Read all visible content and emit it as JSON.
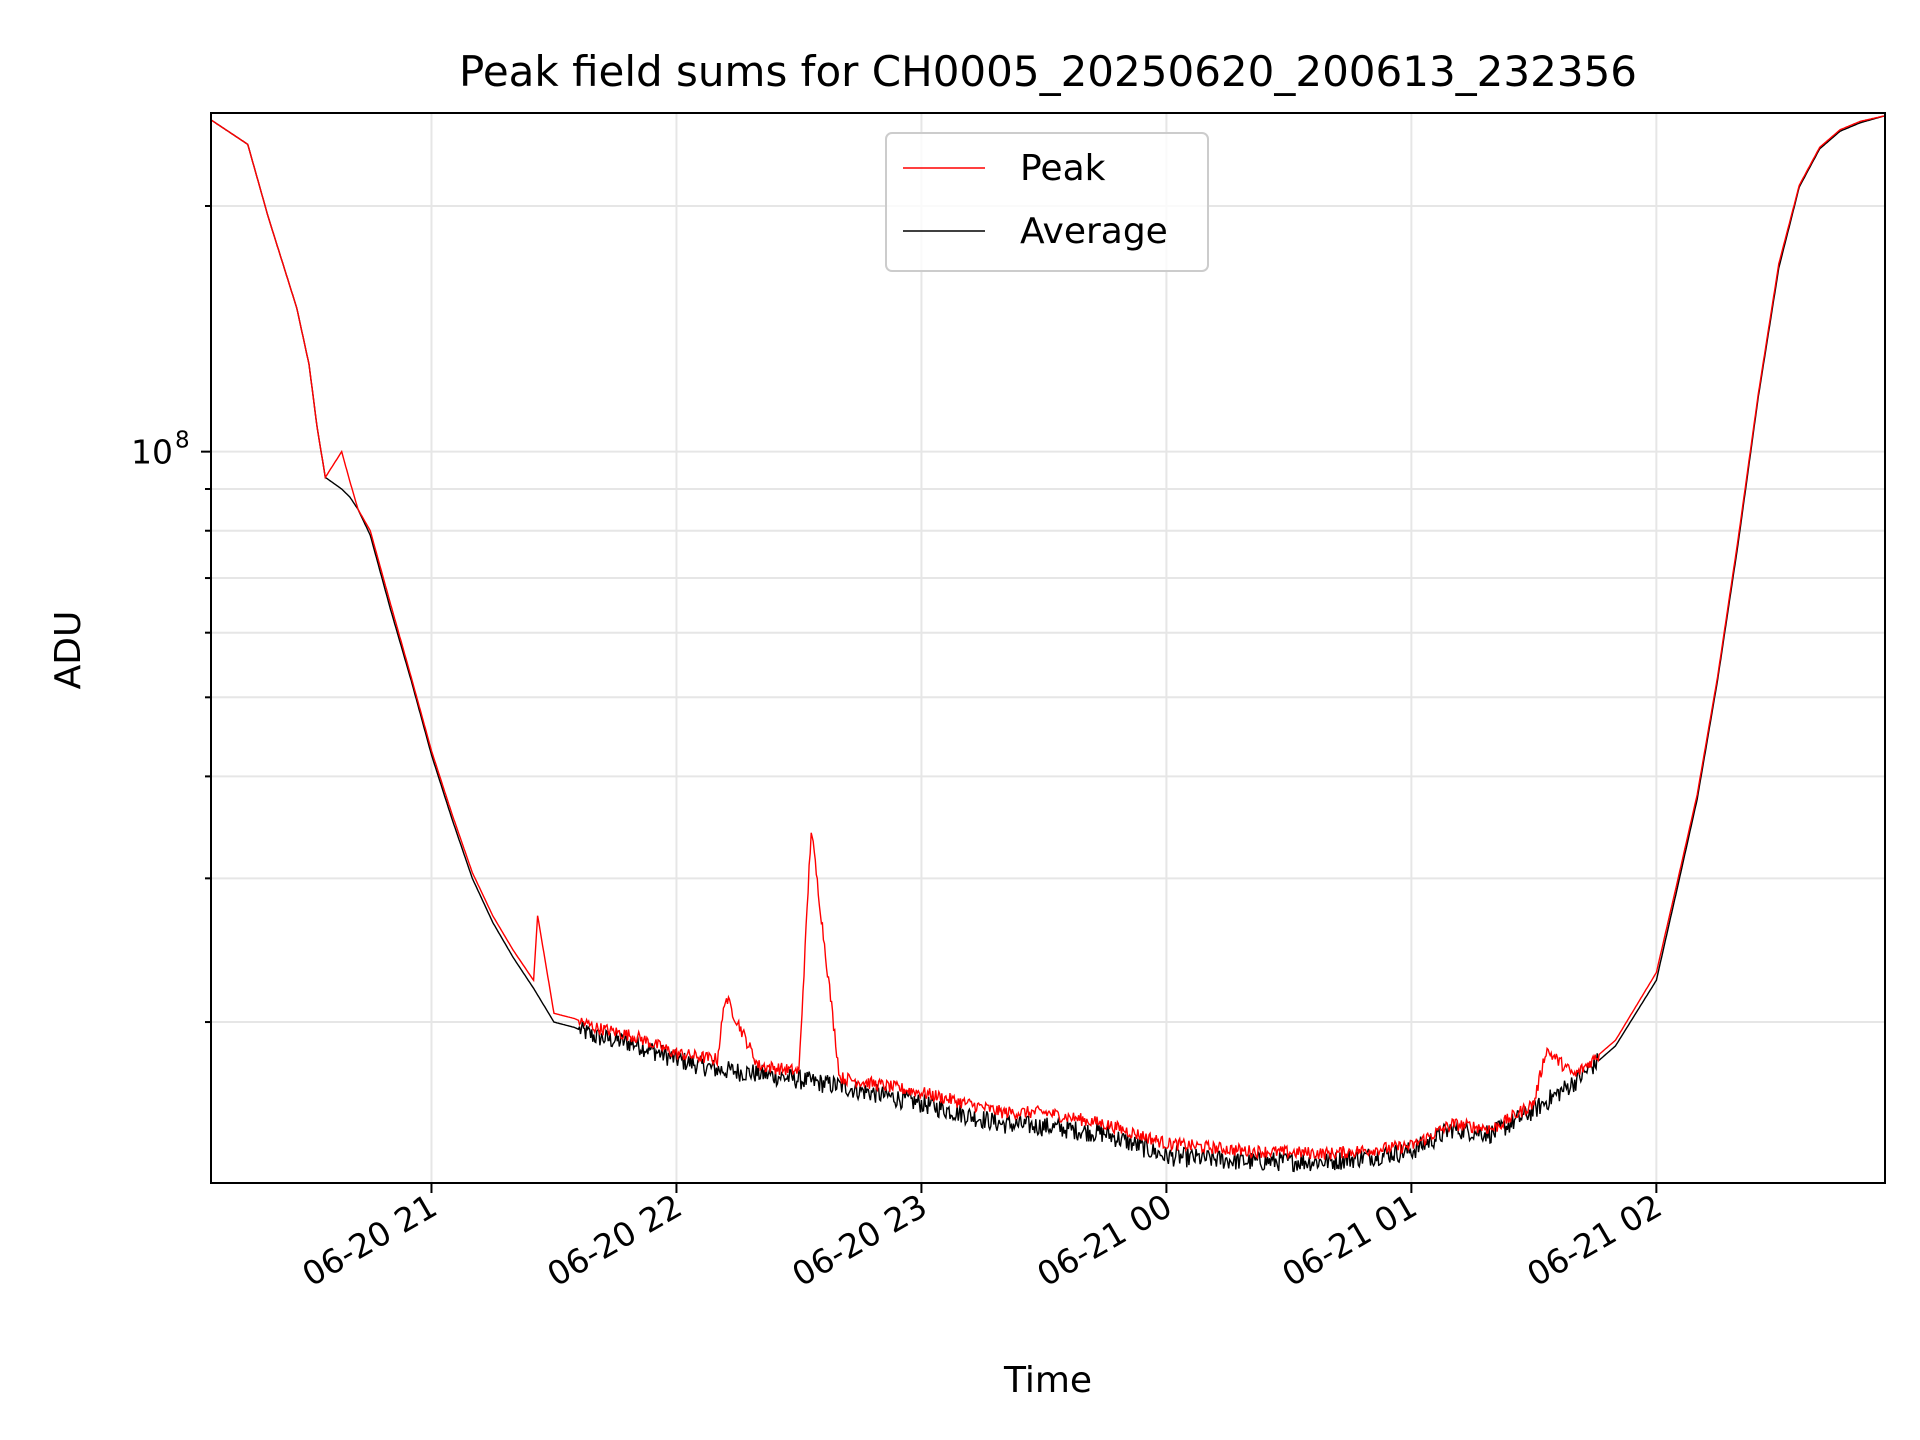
{
  "chart_data": {
    "type": "line",
    "title": "Peak field sums for CH0005_20250620_200613_232356",
    "xlabel": "Time",
    "ylabel": "ADU",
    "y_scale": "log",
    "grid": true,
    "legend_position": "top-center",
    "x_ticks": [
      "06-20 21",
      "06-20 22",
      "06-20 23",
      "06-21 00",
      "06-21 01",
      "06-21 02"
    ],
    "y_ticks": [
      {
        "base": "10",
        "exp": "8"
      }
    ],
    "x_range": [
      "2025-06-20 20:06",
      "2025-06-21 02:56"
    ],
    "ylim": [
      12700000,
      260000000
    ],
    "colors": {
      "peak": "#ff0000",
      "average": "#000000"
    },
    "series": [
      {
        "name": "Peak",
        "color": "#ff0000",
        "x": [
          "2025-06-20 20:06",
          "2025-06-20 20:15",
          "2025-06-20 20:20",
          "2025-06-20 20:27",
          "2025-06-20 20:30",
          "2025-06-20 20:32",
          "2025-06-20 20:34",
          "2025-06-20 20:38",
          "2025-06-20 20:40",
          "2025-06-20 20:42",
          "2025-06-20 20:45",
          "2025-06-20 20:50",
          "2025-06-20 20:55",
          "2025-06-20 21:00",
          "2025-06-20 21:05",
          "2025-06-20 21:10",
          "2025-06-20 21:15",
          "2025-06-20 21:20",
          "2025-06-20 21:25",
          "2025-06-20 21:26",
          "2025-06-20 21:30",
          "2025-06-20 21:35",
          "2025-06-20 21:40",
          "2025-06-20 21:50",
          "2025-06-20 22:00",
          "2025-06-20 22:10",
          "2025-06-20 22:12",
          "2025-06-20 22:20",
          "2025-06-20 22:30",
          "2025-06-20 22:33",
          "2025-06-20 22:40",
          "2025-06-20 23:00",
          "2025-06-20 23:20",
          "2025-06-20 23:30",
          "2025-06-20 23:45",
          "2025-06-21 00:00",
          "2025-06-21 00:20",
          "2025-06-21 00:40",
          "2025-06-21 01:00",
          "2025-06-21 01:10",
          "2025-06-21 01:20",
          "2025-06-21 01:30",
          "2025-06-21 01:33",
          "2025-06-21 01:40",
          "2025-06-21 01:50",
          "2025-06-21 02:00",
          "2025-06-21 02:05",
          "2025-06-21 02:10",
          "2025-06-21 02:15",
          "2025-06-21 02:20",
          "2025-06-21 02:25",
          "2025-06-21 02:30",
          "2025-06-21 02:35",
          "2025-06-21 02:40",
          "2025-06-21 02:45",
          "2025-06-21 02:50",
          "2025-06-21 02:56"
        ],
        "y": [
          255000000,
          238000000,
          194000000,
          150000000,
          128000000,
          107000000,
          93000000,
          100000000,
          92000000,
          85000000,
          80000000,
          65000000,
          53000000,
          43000000,
          36000000,
          30500000,
          27000000,
          24500000,
          22500000,
          27000000,
          20500000,
          20200000,
          19700000,
          19200000,
          18300000,
          18000000,
          21500000,
          17700000,
          17400000,
          34500000,
          17100000,
          16400000,
          15500000,
          15500000,
          15000000,
          14200000,
          13900000,
          13800000,
          14100000,
          15000000,
          14800000,
          15900000,
          18500000,
          17200000,
          19000000,
          23000000,
          29500000,
          38000000,
          53000000,
          78000000,
          118000000,
          170000000,
          212000000,
          236000000,
          248000000,
          254000000,
          258000000
        ]
      },
      {
        "name": "Average",
        "color": "#000000",
        "x": [
          "2025-06-20 20:06",
          "2025-06-20 20:15",
          "2025-06-20 20:20",
          "2025-06-20 20:27",
          "2025-06-20 20:30",
          "2025-06-20 20:32",
          "2025-06-20 20:34",
          "2025-06-20 20:38",
          "2025-06-20 20:40",
          "2025-06-20 20:42",
          "2025-06-20 20:45",
          "2025-06-20 20:50",
          "2025-06-20 20:55",
          "2025-06-20 21:00",
          "2025-06-20 21:05",
          "2025-06-20 21:10",
          "2025-06-20 21:15",
          "2025-06-20 21:20",
          "2025-06-20 21:25",
          "2025-06-20 21:30",
          "2025-06-20 21:35",
          "2025-06-20 21:40",
          "2025-06-20 21:50",
          "2025-06-20 22:00",
          "2025-06-20 22:10",
          "2025-06-20 22:20",
          "2025-06-20 22:30",
          "2025-06-20 22:40",
          "2025-06-20 23:00",
          "2025-06-20 23:20",
          "2025-06-20 23:30",
          "2025-06-20 23:45",
          "2025-06-21 00:00",
          "2025-06-21 00:20",
          "2025-06-21 00:40",
          "2025-06-21 01:00",
          "2025-06-21 01:10",
          "2025-06-21 01:20",
          "2025-06-21 01:30",
          "2025-06-21 01:40",
          "2025-06-21 01:50",
          "2025-06-21 02:00",
          "2025-06-21 02:05",
          "2025-06-21 02:10",
          "2025-06-21 02:15",
          "2025-06-21 02:20",
          "2025-06-21 02:25",
          "2025-06-21 02:30",
          "2025-06-21 02:35",
          "2025-06-21 02:40",
          "2025-06-21 02:45",
          "2025-06-21 02:50",
          "2025-06-21 02:56"
        ],
        "y": [
          255000000,
          238000000,
          194000000,
          150000000,
          128000000,
          107000000,
          93000000,
          90000000,
          88000000,
          85000000,
          79000000,
          64000000,
          52500000,
          42500000,
          35500000,
          30000000,
          26500000,
          24000000,
          22000000,
          20000000,
          19700000,
          19200000,
          18800000,
          18000000,
          17500000,
          17300000,
          17000000,
          16700000,
          15900000,
          15000000,
          14900000,
          14600000,
          13700000,
          13500000,
          13500000,
          13900000,
          14800000,
          14600000,
          15600000,
          16900000,
          18700000,
          22500000,
          29000000,
          37500000,
          52500000,
          77000000,
          117000000,
          168000000,
          211000000,
          235000000,
          247000000,
          253000000,
          258000000
        ]
      }
    ]
  }
}
